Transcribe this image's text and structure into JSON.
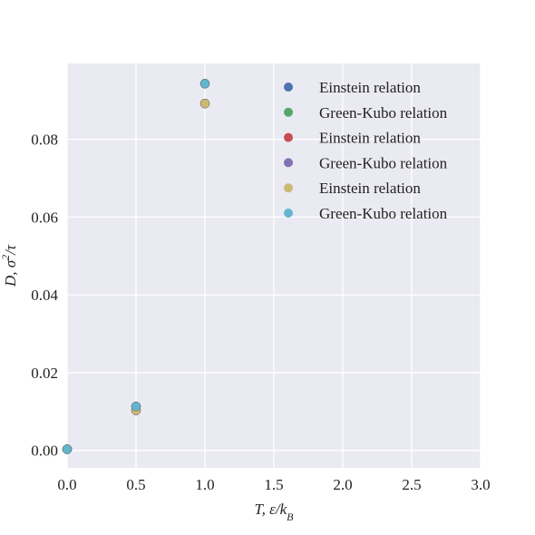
{
  "chart_data": {
    "type": "scatter",
    "xlabel": "T, ε/k_B",
    "ylabel": "D, σ²/τ",
    "xlim": [
      0.0,
      3.0
    ],
    "ylim": [
      -0.0045,
      0.0995
    ],
    "x_ticks": [
      "0.0",
      "0.5",
      "1.0",
      "1.5",
      "2.0",
      "2.5",
      "3.0"
    ],
    "y_ticks": [
      "0.00",
      "0.02",
      "0.04",
      "0.06",
      "0.08"
    ],
    "grid": true,
    "legend_position": "top-right",
    "background": "#eaeaf2",
    "series": [
      {
        "name": "Einstein relation",
        "color": "#4c72b0",
        "x": [
          0.0,
          0.5,
          1.0
        ],
        "y": [
          0.0003,
          0.0113,
          0.0943
        ]
      },
      {
        "name": "Green-Kubo relation",
        "color": "#55a868",
        "x": [
          0.0,
          0.5,
          1.0
        ],
        "y": [
          0.0003,
          0.0113,
          0.0943
        ]
      },
      {
        "name": "Einstein relation",
        "color": "#c44e52",
        "x": [
          0.0,
          0.5,
          1.0
        ],
        "y": [
          0.0003,
          0.0103,
          0.0892
        ]
      },
      {
        "name": "Green-Kubo relation",
        "color": "#8172b2",
        "x": [
          0.0,
          0.5,
          1.0
        ],
        "y": [
          0.0003,
          0.0103,
          0.0892
        ]
      },
      {
        "name": "Einstein relation",
        "color": "#ccb974",
        "x": [
          0.0,
          0.5,
          1.0
        ],
        "y": [
          0.0003,
          0.0103,
          0.0892
        ]
      },
      {
        "name": "Green-Kubo relation",
        "color": "#64b5cd",
        "x": [
          0.0,
          0.5,
          1.0
        ],
        "y": [
          0.0003,
          0.0113,
          0.0943
        ]
      }
    ]
  }
}
